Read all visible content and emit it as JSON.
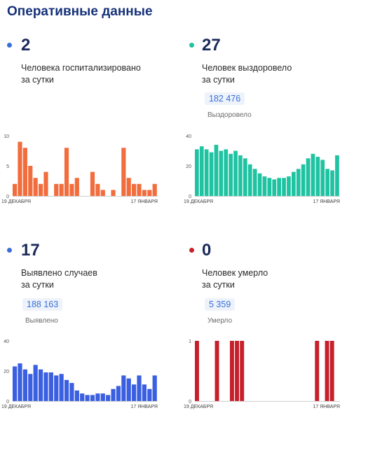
{
  "header": {
    "title": "Оперативные данные"
  },
  "cards": [
    {
      "dot_color": "#3a6fd8",
      "number": "2",
      "description": "Человека госпитализировано\nза сутки",
      "bar_color": "#f26d3d",
      "chart_data": {
        "type": "bar",
        "x_start_label": "19 ДЕКАБРЯ",
        "x_end_label": "17 ЯНВАРЯ",
        "yticks": [
          "0",
          "5",
          "10"
        ],
        "ylim": [
          0,
          10
        ],
        "values": [
          2,
          9,
          8,
          5,
          3,
          2,
          4,
          0,
          2,
          2,
          8,
          2,
          3,
          0,
          0,
          4,
          2,
          1,
          0,
          1,
          0,
          8,
          3,
          2,
          2,
          1,
          1,
          2
        ]
      }
    },
    {
      "dot_color": "#20c3a0",
      "number": "27",
      "description": "Человек выздоровело\nза сутки",
      "total": "182 476",
      "total_label": "Выздоровело",
      "bar_color": "#1fc3a2",
      "chart_data": {
        "type": "bar",
        "x_start_label": "19 ДЕКАБРЯ",
        "x_end_label": "17 ЯНВАРЯ",
        "yticks": [
          "0",
          "20",
          "40"
        ],
        "ylim": [
          0,
          40
        ],
        "values": [
          31,
          33,
          31,
          29,
          34,
          30,
          31,
          28,
          30,
          27,
          25,
          21,
          18,
          15,
          13,
          12,
          11,
          12,
          12,
          13,
          16,
          18,
          21,
          25,
          28,
          26,
          24,
          18,
          17,
          27
        ]
      }
    },
    {
      "dot_color": "#3a6fd8",
      "number": "17",
      "description": "Выявлено случаев\nза сутки",
      "total": "188 163",
      "total_label": "Выявлено",
      "bar_color": "#3a5fe0",
      "chart_data": {
        "type": "bar",
        "x_start_label": "19 ДЕКАБРЯ",
        "x_end_label": "17 ЯНВАРЯ",
        "yticks": [
          "0",
          "20",
          "40"
        ],
        "ylim": [
          0,
          40
        ],
        "values": [
          23,
          25,
          21,
          18,
          24,
          21,
          19,
          19,
          17,
          18,
          14,
          12,
          7,
          5,
          4,
          4,
          5,
          5,
          4,
          8,
          10,
          17,
          15,
          11,
          17,
          11,
          8,
          17
        ]
      }
    },
    {
      "dot_color": "#c8202a",
      "number": "0",
      "description": "Человек умерло\nза сутки",
      "total": "5 359",
      "total_label": "Умерло",
      "bar_color": "#c8202a",
      "chart_data": {
        "type": "bar",
        "x_start_label": "19 ДЕКАБРЯ",
        "x_end_label": "17 ЯНВАРЯ",
        "yticks": [
          "0",
          "1"
        ],
        "ylim": [
          0,
          1
        ],
        "values": [
          1,
          0,
          0,
          0,
          1,
          0,
          0,
          1,
          1,
          1,
          0,
          0,
          0,
          0,
          0,
          0,
          0,
          0,
          0,
          0,
          0,
          0,
          0,
          0,
          1,
          0,
          1,
          1,
          0
        ]
      }
    }
  ]
}
